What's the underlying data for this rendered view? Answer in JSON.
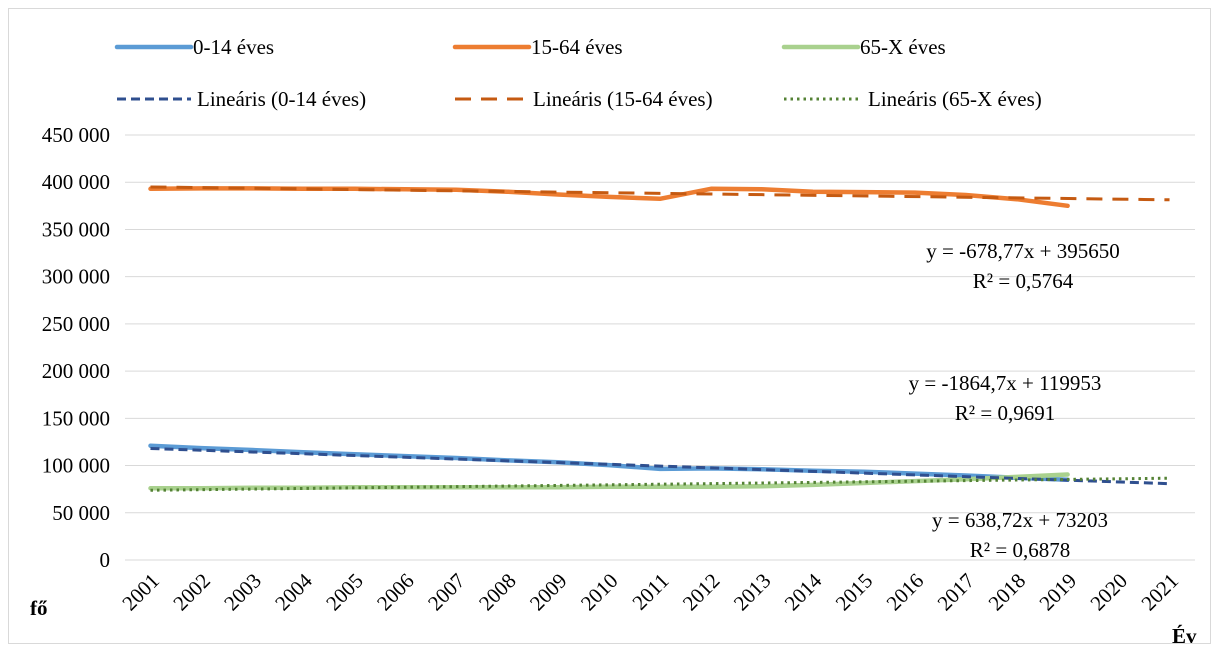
{
  "chart_data": {
    "type": "line",
    "categories": [
      "2001",
      "2002",
      "2003",
      "2004",
      "2005",
      "2006",
      "2007",
      "2008",
      "2009",
      "2010",
      "2011",
      "2012",
      "2013",
      "2014",
      "2015",
      "2016",
      "2017",
      "2018",
      "2019",
      "2020",
      "2021"
    ],
    "ylim": [
      0,
      450000
    ],
    "yticks": [
      "0",
      "50 000",
      "100 000",
      "150 000",
      "200 000",
      "250 000",
      "300 000",
      "350 000",
      "400 000",
      "450 000"
    ],
    "ylabel": "fő",
    "xlabel": "Év",
    "grid": "horizontal",
    "legend_position": "top",
    "series": [
      {
        "name": "0-14 éves",
        "color": "#5b9bd5",
        "values": [
          121000,
          118500,
          116500,
          114000,
          112000,
          110000,
          108000,
          105500,
          103500,
          100500,
          96500,
          97000,
          96000,
          94500,
          93500,
          91500,
          89500,
          87000,
          85000,
          null,
          null
        ]
      },
      {
        "name": "15-64 éves",
        "color": "#ed7d31",
        "values": [
          393000,
          393500,
          393500,
          393000,
          393000,
          392500,
          392000,
          390000,
          387000,
          384500,
          382500,
          393000,
          392500,
          390000,
          389500,
          389000,
          386500,
          382000,
          375000,
          null,
          null
        ]
      },
      {
        "name": "65-X éves",
        "color": "#a9d18e",
        "values": [
          76000,
          76000,
          76500,
          76500,
          77000,
          77000,
          77000,
          77000,
          77000,
          77500,
          77500,
          77500,
          78000,
          79500,
          81500,
          83500,
          85500,
          88000,
          90500,
          null,
          null
        ]
      }
    ],
    "trendlines": [
      {
        "name": "Lineáris (0-14 éves)",
        "color": "#2f4f8f",
        "style": "dashed",
        "slope": -1864.7,
        "intercept": 119953,
        "equation": "y = -1864,7x + 119953",
        "r2": "R² = 0,9691"
      },
      {
        "name": "Lineáris (15-64 éves)",
        "color": "#c55a11",
        "style": "long-dashed",
        "slope": -678.77,
        "intercept": 395650,
        "equation": "y = -678,77x + 395650",
        "r2": "R² = 0,5764"
      },
      {
        "name": "Lineáris (65-X éves)",
        "color": "#548235",
        "style": "dotted",
        "slope": 638.72,
        "intercept": 73203,
        "equation": "y = 638,72x + 73203",
        "r2": "R² = 0,6878"
      }
    ]
  }
}
